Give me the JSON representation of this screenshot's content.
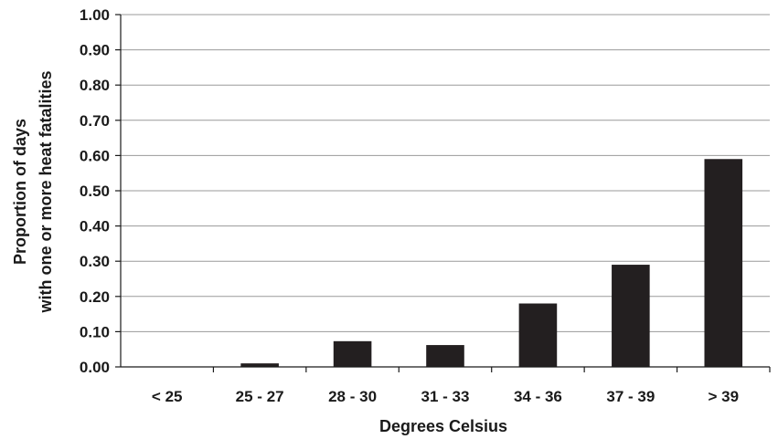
{
  "chart_data": {
    "type": "bar",
    "categories": [
      "< 25",
      "25 - 27",
      "28 - 30",
      "31 - 33",
      "34 - 36",
      "37 - 39",
      "> 39"
    ],
    "values": [
      0.0,
      0.01,
      0.073,
      0.062,
      0.18,
      0.29,
      0.59
    ],
    "title": "",
    "xlabel": "Degrees Celsius",
    "ylabel_lines": [
      "Proportion of days",
      "with one or more heat fatalities"
    ],
    "ylim": [
      0,
      1.0
    ],
    "yticks": [
      "0.00",
      "0.10",
      "0.20",
      "0.30",
      "0.40",
      "0.50",
      "0.60",
      "0.70",
      "0.80",
      "0.90",
      "1.00"
    ],
    "grid": true,
    "bar_color": "#231f20",
    "grid_color": "#9a9a9a"
  }
}
